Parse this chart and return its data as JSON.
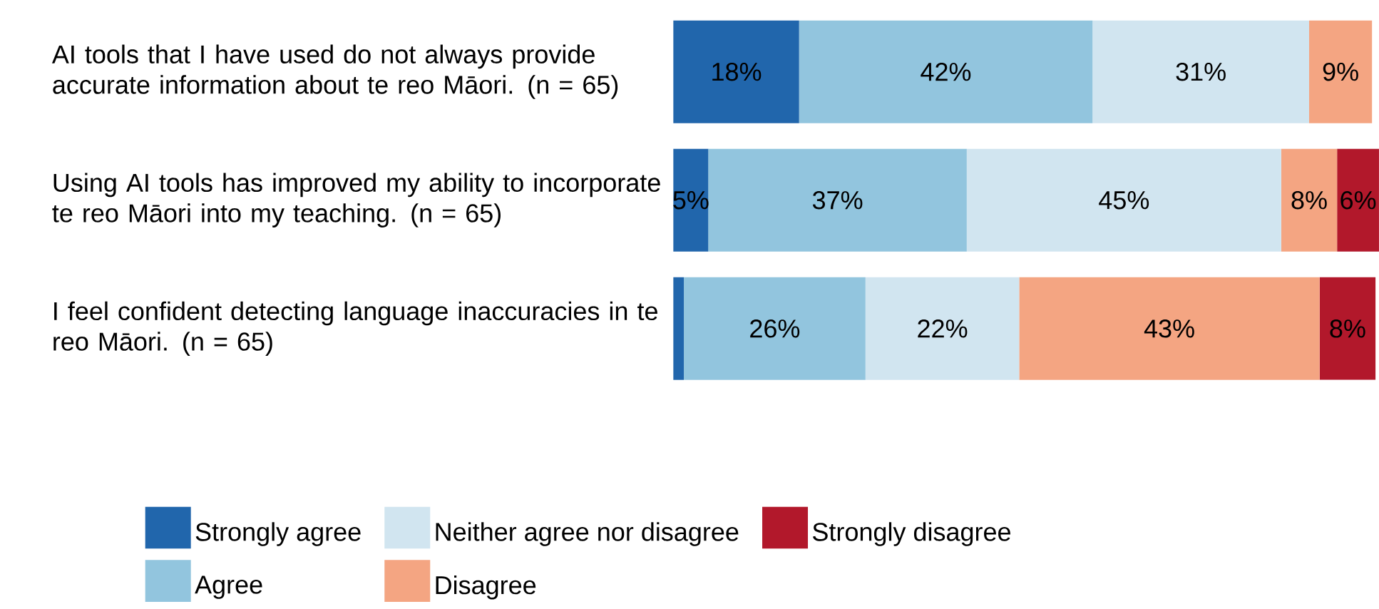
{
  "chart_data": {
    "type": "bar",
    "orientation": "horizontal",
    "stacked": true,
    "legend": "bottom",
    "categories": [
      "AI tools that I have used do not always provide accurate information about te reo Māori. (n = 65)",
      "Using AI tools has improved my ability to incorporate te reo Māori into my teaching. (n = 65)",
      "I feel confident detecting language inaccuracies in te reo Māori. (n = 65)"
    ],
    "series": [
      {
        "name": "Strongly agree",
        "color": "#2166ac",
        "values": [
          18,
          5,
          1.5
        ],
        "value_labels": [
          "18%",
          "5%",
          null
        ]
      },
      {
        "name": "Agree",
        "color": "#92c5de",
        "values": [
          42,
          37,
          26
        ],
        "value_labels": [
          "42%",
          "37%",
          "26%"
        ]
      },
      {
        "name": "Neither agree nor disagree",
        "color": "#d1e5f0",
        "values": [
          31,
          45,
          22
        ],
        "value_labels": [
          "31%",
          "45%",
          "22%"
        ]
      },
      {
        "name": "Disagree",
        "color": "#f4a582",
        "values": [
          9,
          8,
          43
        ],
        "value_labels": [
          "9%",
          "8%",
          "43%"
        ]
      },
      {
        "name": "Strongly disagree",
        "color": "#b2182b",
        "values": [
          null,
          6,
          8
        ],
        "value_labels": [
          null,
          "6%",
          "8%"
        ]
      }
    ]
  }
}
